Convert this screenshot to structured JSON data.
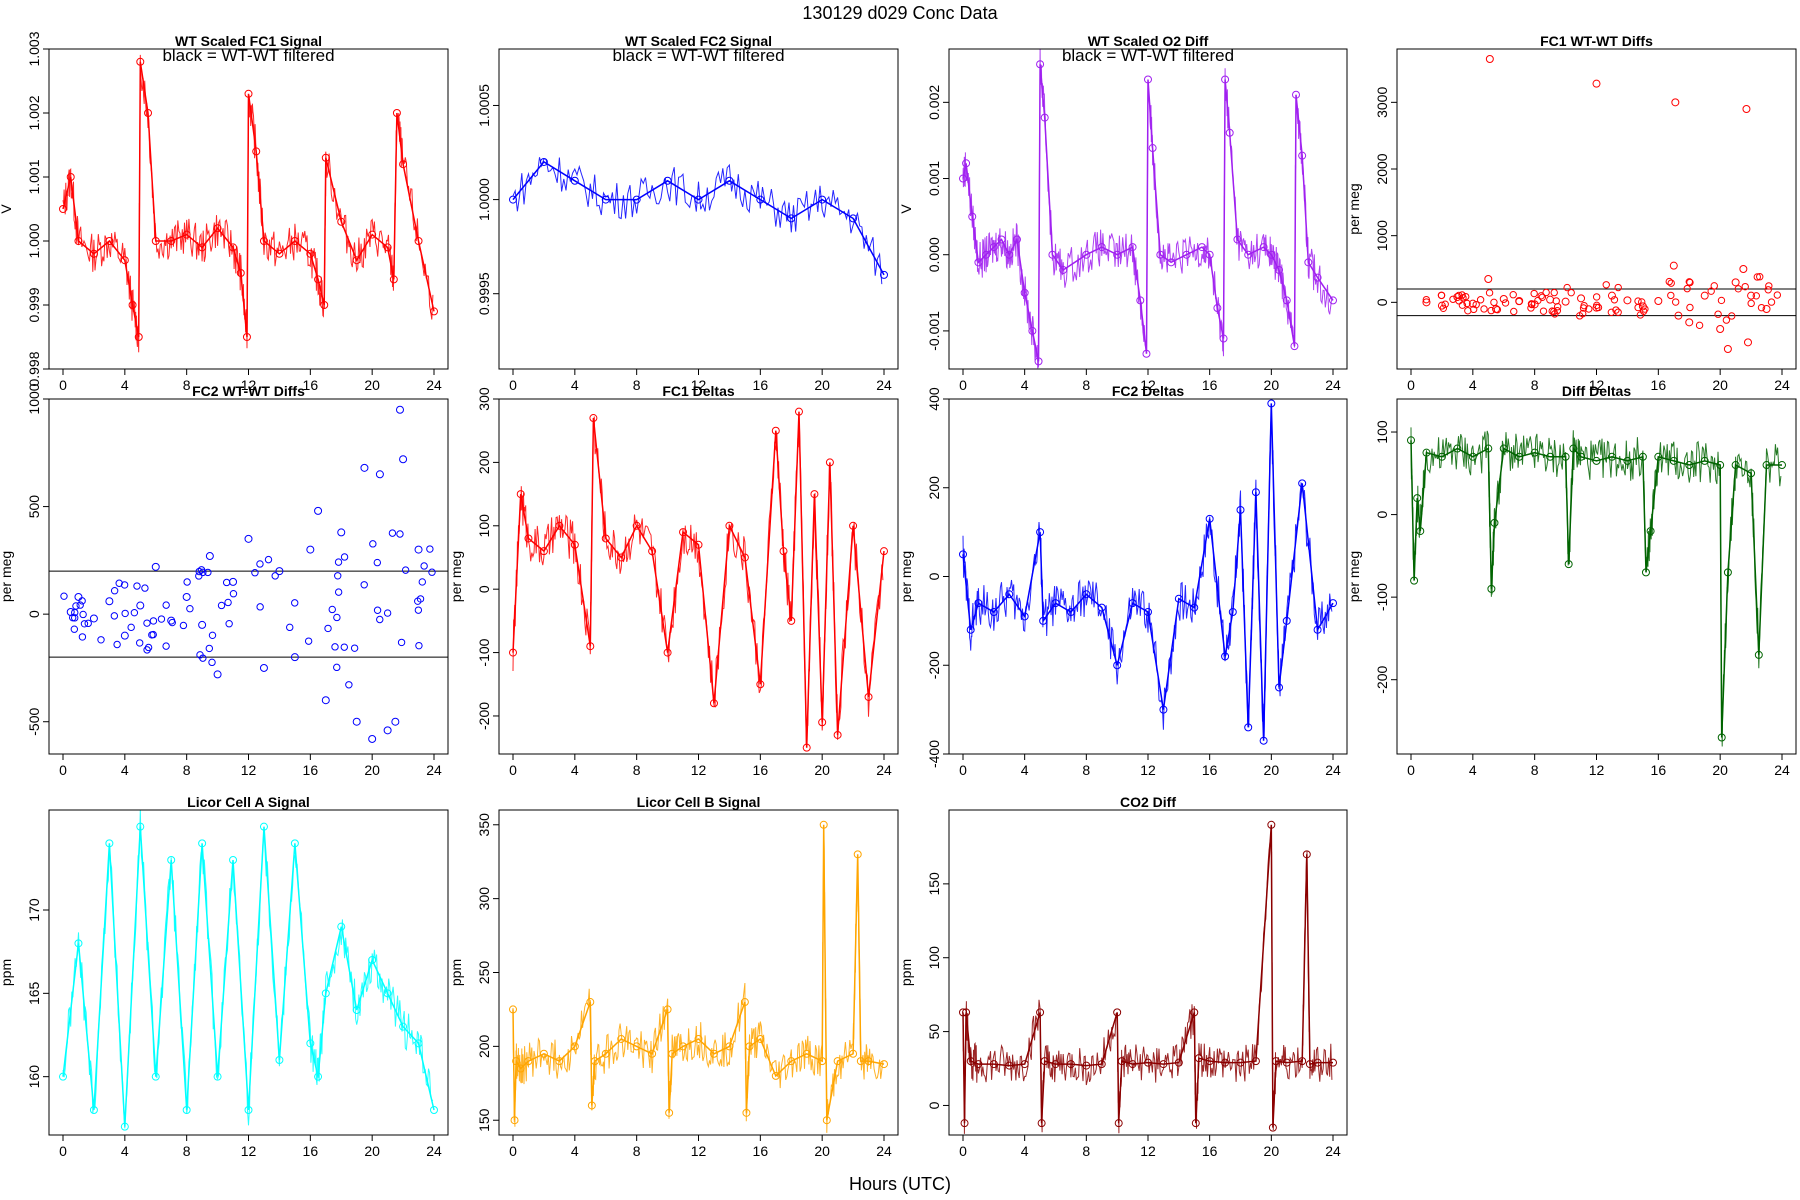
{
  "figure": {
    "title": "130129   d029   Conc Data",
    "xlabel": "Hours (UTC)"
  },
  "chart_data": [
    {
      "type": "line",
      "title": "WT Scaled FC1 Signal",
      "note": "black = WT-WT filtered",
      "ylabel": "V",
      "color": "#ff0000",
      "xlim": [
        0,
        24
      ],
      "ylim": [
        0.998,
        1.003
      ],
      "xticks": [
        0,
        4,
        8,
        12,
        16,
        20,
        24
      ],
      "yticks": [
        0.998,
        0.999,
        1.0,
        1.001,
        1.002,
        1.003
      ],
      "ytick_labels": [
        "0.998",
        "0.999",
        "1.000",
        "1.001",
        "1.002",
        "1.003"
      ],
      "x": [
        0,
        0.5,
        1,
        2,
        3,
        4,
        4.5,
        4.9,
        5.0,
        5.5,
        6,
        7,
        8,
        9,
        10,
        11,
        11.5,
        11.9,
        12.0,
        12.5,
        13,
        14,
        15,
        16,
        16.5,
        16.9,
        17.0,
        18,
        19,
        20,
        21,
        21.4,
        21.6,
        22,
        23,
        24
      ],
      "values": [
        1.0005,
        1.001,
        1.0,
        0.9998,
        1.0,
        0.9997,
        0.999,
        0.9985,
        1.0028,
        1.002,
        1.0,
        1.0,
        1.0001,
        0.9999,
        1.0002,
        0.9999,
        0.9995,
        0.9985,
        1.0023,
        1.0014,
        1.0,
        0.9998,
        1.0,
        0.9998,
        0.9994,
        0.999,
        1.0013,
        1.0003,
        0.9997,
        1.0001,
        0.9999,
        0.9994,
        1.002,
        1.0012,
        1.0,
        0.9989
      ]
    },
    {
      "type": "line",
      "title": "WT Scaled FC2 Signal",
      "note": "black = WT-WT filtered",
      "ylabel": "",
      "color": "#0000ff",
      "xlim": [
        0,
        24
      ],
      "ylim": [
        0.9991,
        1.0008
      ],
      "xticks": [
        0,
        4,
        8,
        12,
        16,
        20,
        24
      ],
      "yticks": [
        0.9995,
        1.0,
        1.0005
      ],
      "ytick_labels": [
        "0.9995",
        "1.0000",
        "1.0005"
      ],
      "x": [
        0,
        2,
        4,
        6,
        8,
        10,
        12,
        14,
        16,
        18,
        20,
        22,
        24
      ],
      "values": [
        1.0,
        1.0002,
        1.0001,
        1.0,
        1.0,
        1.0001,
        1.0,
        1.0001,
        1.0,
        0.9999,
        1.0,
        0.9999,
        0.9996
      ]
    },
    {
      "type": "line",
      "title": "WT Scaled O2 Diff",
      "note": "black = WT-WT filtered",
      "ylabel": "V",
      "color": "#a020f0",
      "xlim": [
        0,
        24
      ],
      "ylim": [
        -0.0015,
        0.0027
      ],
      "xticks": [
        0,
        4,
        8,
        12,
        16,
        20,
        24
      ],
      "yticks": [
        -0.001,
        0.0,
        0.001,
        0.002
      ],
      "ytick_labels": [
        "-0.001",
        "0.000",
        "0.001",
        "0.002"
      ],
      "x": [
        0,
        0.2,
        0.6,
        1,
        1.5,
        2,
        2.5,
        3,
        3.5,
        4,
        4.5,
        4.9,
        5.0,
        5.3,
        5.8,
        6.5,
        8,
        9,
        10,
        11,
        11.5,
        11.9,
        12.0,
        12.3,
        12.8,
        13.5,
        14.5,
        15.5,
        16,
        16.5,
        16.9,
        17.0,
        17.3,
        17.8,
        18.5,
        19.5,
        20,
        20.5,
        21,
        21.5,
        21.6,
        22,
        22.4,
        23,
        24
      ],
      "values": [
        0.001,
        0.0012,
        0.0005,
        -0.0001,
        0.0,
        0.0001,
        0.0002,
        0.0,
        0.0002,
        -0.0005,
        -0.001,
        -0.0014,
        0.0025,
        0.0018,
        0.0,
        -0.0002,
        0.0,
        0.0001,
        0.0,
        0.0001,
        -0.0006,
        -0.0013,
        0.0023,
        0.0014,
        0.0,
        -0.0001,
        0.0,
        0.0001,
        0.0,
        -0.0007,
        -0.0011,
        0.0023,
        0.0016,
        0.0002,
        0.0,
        0.0001,
        0.0,
        -0.0002,
        -0.0006,
        -0.0012,
        0.0021,
        0.0013,
        -0.0001,
        -0.0003,
        -0.0006
      ]
    },
    {
      "type": "scatter",
      "title": "FC1 WT-WT Diffs",
      "ylabel": "per meg",
      "color": "#ff0000",
      "xlim": [
        0,
        24
      ],
      "ylim": [
        -1000,
        3800
      ],
      "xticks": [
        0,
        4,
        8,
        12,
        16,
        20,
        24
      ],
      "yticks": [
        0,
        1000,
        2000,
        3000
      ],
      "ytick_labels": [
        "0",
        "1000",
        "2000",
        "3000"
      ],
      "hlines": [
        200,
        -200
      ],
      "x": [
        1,
        2,
        3,
        4,
        5,
        5.5,
        6,
        7,
        8,
        9,
        10,
        11,
        12,
        13,
        14,
        15,
        16,
        17,
        17.3,
        18,
        19,
        20,
        20.5,
        21,
        21.5,
        21.8,
        22,
        23,
        5.1,
        12.0,
        17.1,
        21.7
      ],
      "values": [
        0,
        -50,
        80,
        -20,
        350,
        -100,
        50,
        20,
        -30,
        40,
        10,
        60,
        -80,
        100,
        30,
        -60,
        20,
        550,
        -200,
        -300,
        100,
        -400,
        -700,
        300,
        500,
        -600,
        100,
        -100,
        3650,
        3280,
        3000,
        2900
      ]
    },
    {
      "type": "scatter",
      "title": "FC2 WT-WT Diffs",
      "ylabel": "per meg",
      "color": "#0000ff",
      "xlim": [
        0,
        24
      ],
      "ylim": [
        -650,
        1000
      ],
      "xticks": [
        0,
        4,
        8,
        12,
        16,
        20,
        24
      ],
      "yticks": [
        -500,
        0,
        500,
        1000
      ],
      "ytick_labels": [
        "-500",
        "0",
        "500",
        "1000"
      ],
      "hlines": [
        200,
        -200
      ],
      "x": [
        0.5,
        1,
        2,
        3,
        4,
        5,
        6,
        7,
        8,
        9,
        9.5,
        10,
        11,
        12,
        13,
        14,
        15,
        16,
        16.5,
        17,
        18,
        19,
        19.5,
        20,
        20.5,
        21,
        21.5,
        21.8,
        22,
        23
      ],
      "values": [
        10,
        80,
        -20,
        60,
        -100,
        40,
        220,
        -30,
        80,
        -50,
        270,
        -280,
        150,
        350,
        -250,
        200,
        -200,
        300,
        480,
        -400,
        380,
        -500,
        680,
        -580,
        650,
        -540,
        -500,
        950,
        720,
        300
      ]
    },
    {
      "type": "line",
      "title": "FC1 Deltas",
      "ylabel": "per meg",
      "color": "#ff0000",
      "xlim": [
        0,
        24
      ],
      "ylim": [
        -260,
        300
      ],
      "xticks": [
        0,
        4,
        8,
        12,
        16,
        20,
        24
      ],
      "yticks": [
        -200,
        -100,
        0,
        100,
        200,
        300
      ],
      "ytick_labels": [
        "-200",
        "-100",
        "0",
        "100",
        "200",
        "300"
      ],
      "x": [
        0,
        0.5,
        1,
        2,
        3,
        4,
        5,
        5.2,
        6,
        7,
        8,
        9,
        10,
        11,
        12,
        13,
        14,
        15,
        16,
        17,
        17.5,
        18,
        18.5,
        19,
        19.5,
        20,
        20.5,
        21,
        22,
        23,
        24
      ],
      "values": [
        -100,
        150,
        80,
        60,
        100,
        70,
        -90,
        270,
        80,
        50,
        100,
        60,
        -100,
        90,
        70,
        -180,
        100,
        50,
        -150,
        250,
        60,
        -50,
        280,
        -250,
        150,
        -210,
        200,
        -230,
        100,
        -170,
        60
      ]
    },
    {
      "type": "line",
      "title": "FC2 Deltas",
      "ylabel": "per meg",
      "color": "#0000ff",
      "xlim": [
        0,
        24
      ],
      "ylim": [
        -400,
        400
      ],
      "xticks": [
        0,
        4,
        8,
        12,
        16,
        20,
        24
      ],
      "yticks": [
        -400,
        -200,
        0,
        200,
        400
      ],
      "ytick_labels": [
        "-400",
        "-200",
        "0",
        "200",
        "400"
      ],
      "x": [
        0,
        0.5,
        1,
        2,
        3,
        4,
        5,
        5.2,
        6,
        7,
        8,
        9,
        10,
        11,
        12,
        13,
        14,
        15,
        16,
        17,
        17.5,
        18,
        18.5,
        19,
        19.5,
        20,
        20.5,
        21,
        22,
        23,
        24
      ],
      "values": [
        50,
        -120,
        -60,
        -80,
        -40,
        -90,
        100,
        -100,
        -60,
        -80,
        -40,
        -70,
        -200,
        -60,
        -80,
        -300,
        -50,
        -70,
        130,
        -180,
        -80,
        150,
        -340,
        190,
        -370,
        390,
        -250,
        -100,
        210,
        -120,
        -60
      ]
    },
    {
      "type": "line",
      "title": "Diff Deltas",
      "ylabel": "per meg",
      "color": "#006400",
      "xlim": [
        0,
        24
      ],
      "ylim": [
        -290,
        140
      ],
      "xticks": [
        0,
        4,
        8,
        12,
        16,
        20,
        24
      ],
      "yticks": [
        -200,
        -100,
        0,
        100
      ],
      "ytick_labels": [
        "-200",
        "-100",
        "0",
        "100"
      ],
      "x": [
        0,
        0.2,
        0.4,
        0.6,
        1,
        2,
        3,
        4,
        5,
        5.2,
        5.4,
        6,
        7,
        8,
        9,
        10,
        10.2,
        10.5,
        11,
        12,
        13,
        14,
        15,
        15.2,
        15.5,
        16,
        17,
        18,
        19,
        20,
        20.1,
        20.5,
        21,
        22,
        22.5,
        23,
        24
      ],
      "values": [
        90,
        -80,
        20,
        -20,
        75,
        70,
        80,
        70,
        80,
        -90,
        -10,
        80,
        70,
        75,
        70,
        70,
        -60,
        80,
        70,
        65,
        70,
        65,
        70,
        -70,
        -20,
        70,
        65,
        60,
        65,
        60,
        -270,
        -70,
        60,
        50,
        -170,
        60,
        60
      ]
    },
    {
      "type": "line",
      "title": "Licor Cell A Signal",
      "ylabel": "ppm",
      "color": "#00ffff",
      "xlim": [
        0,
        24
      ],
      "ylim": [
        156.5,
        176
      ],
      "xticks": [
        0,
        4,
        8,
        12,
        16,
        20,
        24
      ],
      "yticks": [
        160,
        165,
        170
      ],
      "ytick_labels": [
        "160",
        "165",
        "170"
      ],
      "x": [
        0,
        1,
        2,
        3,
        4,
        5,
        6,
        7,
        8,
        9,
        10,
        11,
        12,
        13,
        14,
        15,
        16,
        16.5,
        17,
        18,
        19,
        20,
        21,
        22,
        23,
        24
      ],
      "values": [
        160,
        168,
        158,
        174,
        157,
        175,
        160,
        173,
        158,
        174,
        160,
        173,
        158,
        175,
        161,
        174,
        162,
        160,
        165,
        169,
        164,
        167,
        165,
        163,
        162,
        158
      ]
    },
    {
      "type": "line",
      "title": "Licor Cell B Signal",
      "ylabel": "ppm",
      "color": "#ffa500",
      "xlim": [
        0,
        24
      ],
      "ylim": [
        140,
        360
      ],
      "xticks": [
        0,
        4,
        8,
        12,
        16,
        20,
        24
      ],
      "yticks": [
        150,
        200,
        250,
        300,
        350
      ],
      "ytick_labels": [
        "150",
        "200",
        "250",
        "300",
        "350"
      ],
      "x": [
        0,
        0.1,
        0.2,
        0.5,
        1,
        2,
        3,
        4,
        5,
        5.1,
        5.3,
        6,
        7,
        8,
        9,
        10,
        10.1,
        10.3,
        11,
        12,
        13,
        14,
        15,
        15.1,
        15.3,
        16,
        17,
        18,
        19,
        20,
        20.1,
        20.3,
        21,
        22,
        22.3,
        22.5,
        23,
        24
      ],
      "values": [
        225,
        150,
        190,
        185,
        190,
        195,
        190,
        200,
        230,
        160,
        190,
        195,
        205,
        200,
        195,
        225,
        155,
        195,
        200,
        205,
        195,
        200,
        230,
        155,
        200,
        205,
        180,
        190,
        195,
        190,
        350,
        150,
        190,
        195,
        330,
        190,
        190,
        188
      ]
    },
    {
      "type": "line",
      "title": "CO2 Diff",
      "ylabel": "ppm",
      "color": "#8b0000",
      "xlim": [
        0,
        24
      ],
      "ylim": [
        -20,
        200
      ],
      "xticks": [
        0,
        4,
        8,
        12,
        16,
        20,
        24
      ],
      "yticks": [
        0,
        50,
        100,
        150
      ],
      "ytick_labels": [
        "0",
        "50",
        "100",
        "150"
      ],
      "x": [
        0,
        0.1,
        0.2,
        0.5,
        1,
        2,
        3,
        4,
        5,
        5.1,
        5.3,
        6,
        7,
        8,
        9,
        10,
        10.1,
        10.3,
        11,
        12,
        13,
        14,
        15,
        15.1,
        15.3,
        16,
        17,
        18,
        19,
        20,
        20.1,
        20.3,
        21,
        22,
        22.3,
        22.5,
        23,
        24
      ],
      "values": [
        63,
        -12,
        63,
        30,
        28,
        28,
        27,
        28,
        63,
        -12,
        30,
        28,
        28,
        27,
        28,
        63,
        -12,
        30,
        28,
        29,
        28,
        29,
        63,
        -12,
        32,
        30,
        29,
        29,
        30,
        190,
        -15,
        30,
        29,
        30,
        170,
        28,
        29,
        29
      ]
    }
  ]
}
